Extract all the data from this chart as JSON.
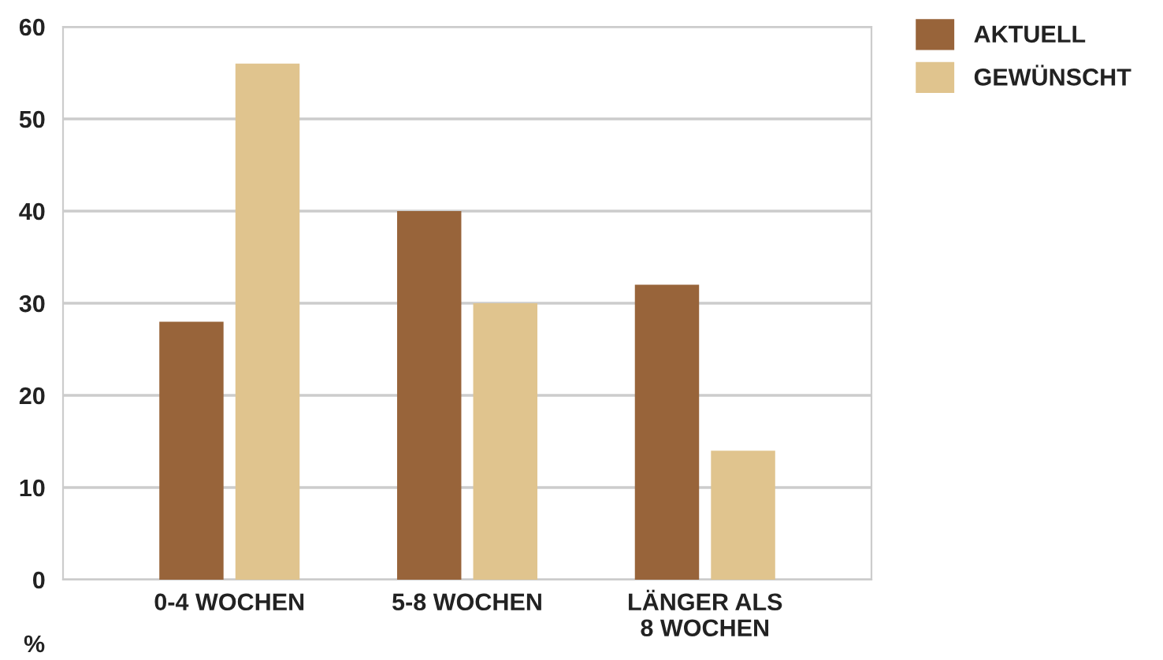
{
  "chart_data": {
    "type": "bar",
    "ylabel": "%",
    "categories": [
      "0-4 WOCHEN",
      "5-8 WOCHEN",
      "LÄNGER ALS\n8 WOCHEN"
    ],
    "series": [
      {
        "name": "AKTUELL",
        "color": "#98643a",
        "values": [
          28,
          40,
          32
        ]
      },
      {
        "name": "GEWÜNSCHT",
        "color": "#e0c48e",
        "values": [
          56,
          30,
          14
        ]
      }
    ],
    "ylim": [
      0,
      60
    ],
    "yticks": [
      0,
      10,
      20,
      30,
      40,
      50,
      60
    ],
    "grid": "y",
    "legend": "top right"
  }
}
